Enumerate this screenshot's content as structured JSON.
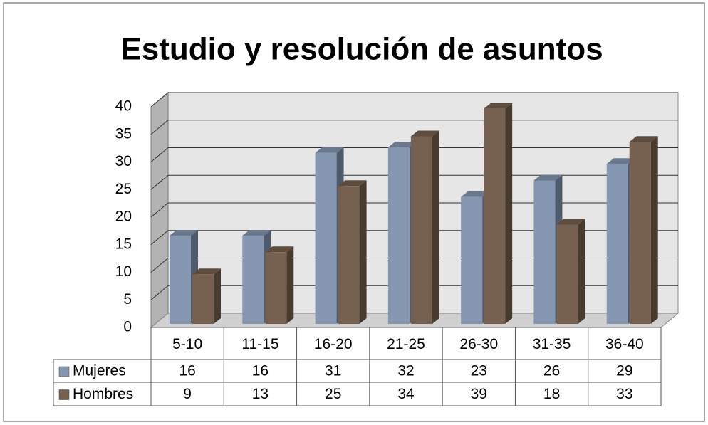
{
  "chart_data": {
    "type": "bar",
    "title": "Estudio y resolución de asuntos",
    "categories": [
      "5-10",
      "11-15",
      "16-20",
      "21-25",
      "26-30",
      "31-35",
      "36-40"
    ],
    "series": [
      {
        "name": "Mujeres",
        "color": "#8496b0",
        "values": [
          16,
          16,
          31,
          32,
          23,
          26,
          29
        ]
      },
      {
        "name": "Hombres",
        "color": "#76604f",
        "values": [
          9,
          13,
          25,
          34,
          39,
          18,
          33
        ]
      }
    ],
    "ylim": [
      0,
      40
    ],
    "yticks": [
      0,
      5,
      10,
      15,
      20,
      25,
      30,
      35,
      40
    ],
    "grid": true,
    "data_table": true
  }
}
